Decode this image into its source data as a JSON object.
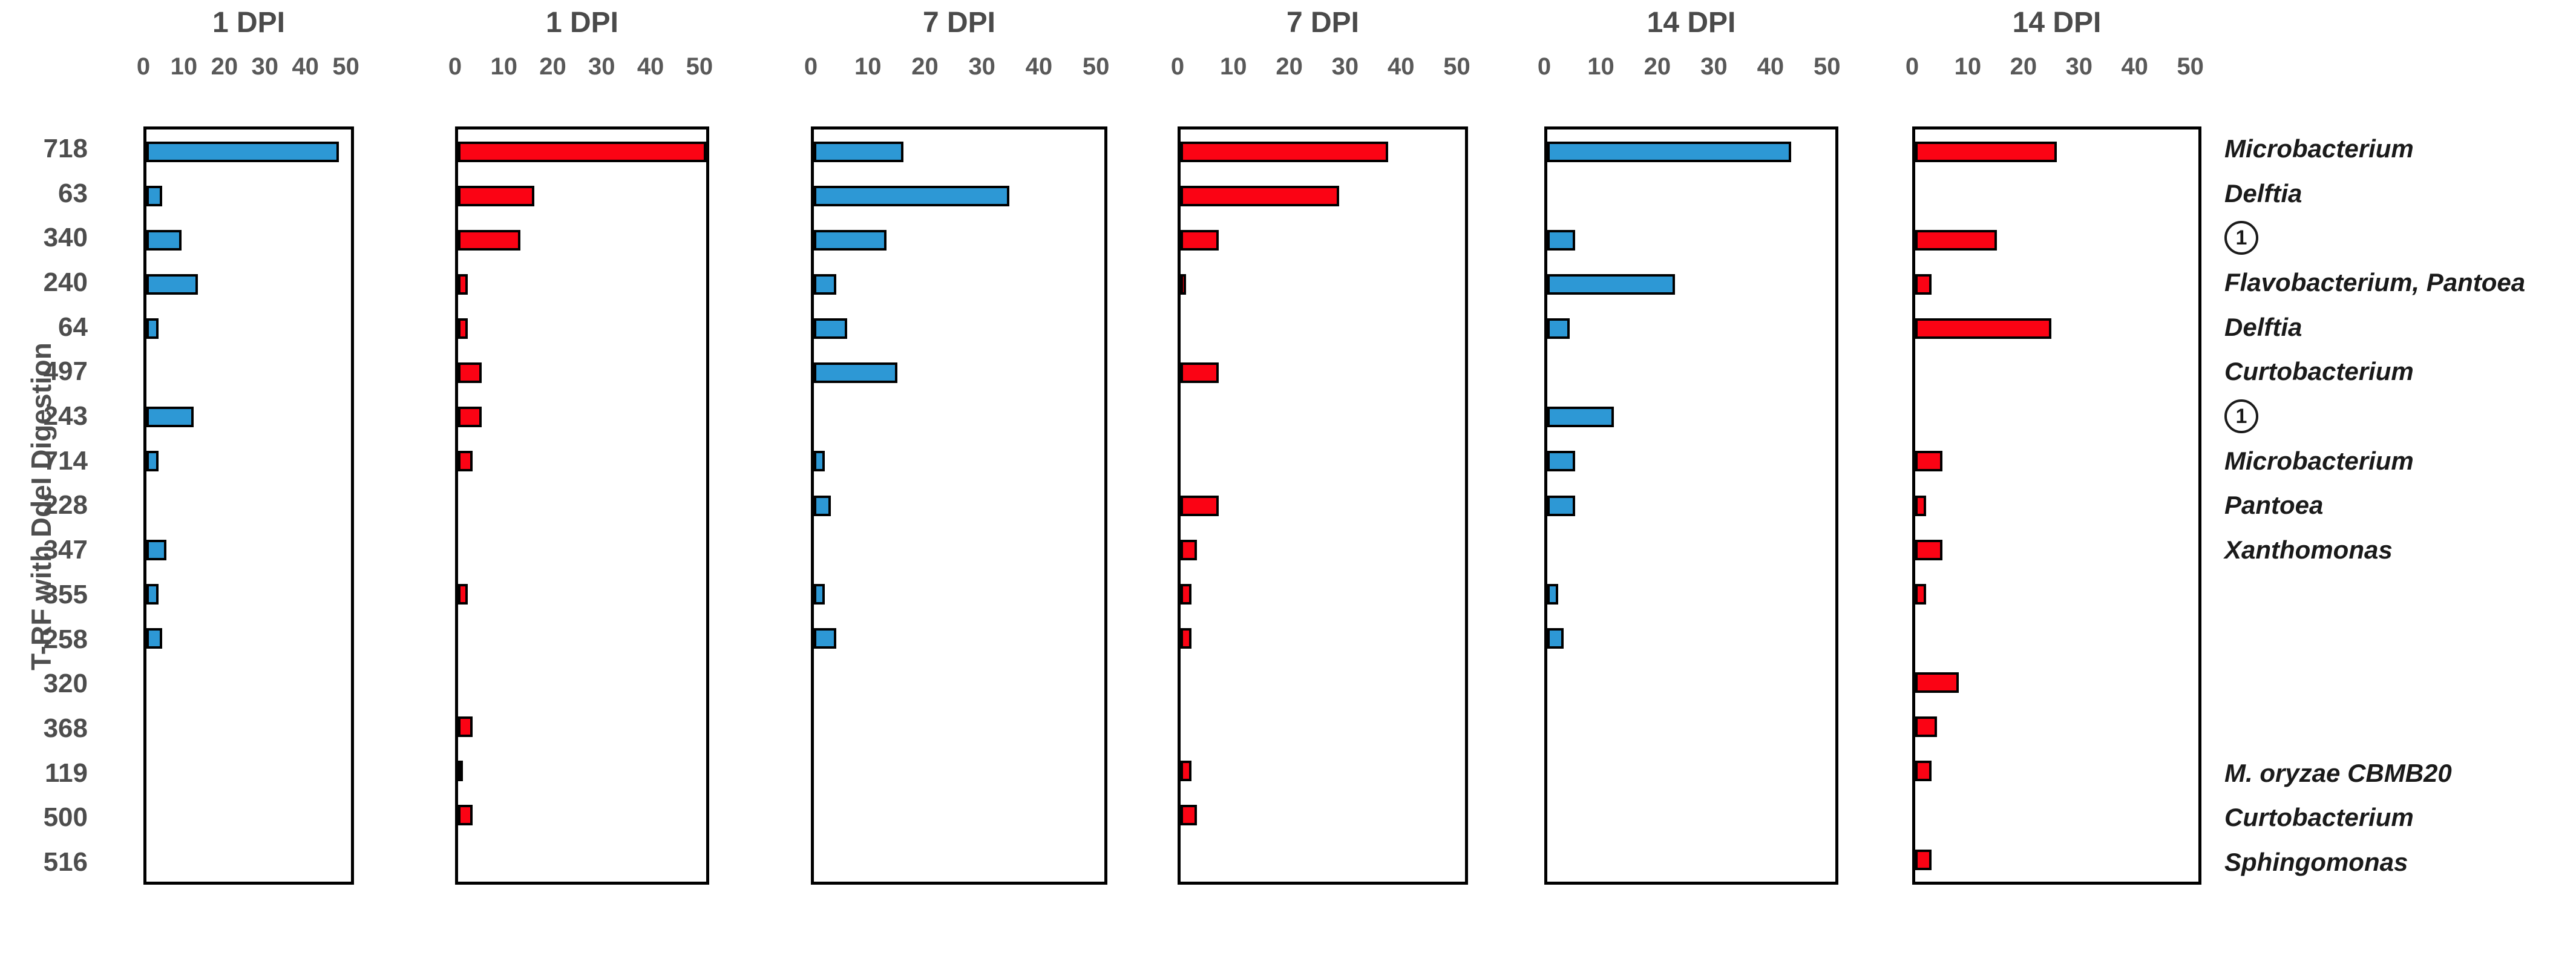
{
  "chart_data": {
    "type": "bar",
    "orientation": "horizontal",
    "title": "",
    "ylabel": "T-RF with DdeI Digestion",
    "xlabel": "",
    "xlim": [
      0,
      52
    ],
    "xticks": [
      0,
      10,
      20,
      30,
      40,
      50
    ],
    "grid": false,
    "categories": [
      "718",
      "63",
      "340",
      "240",
      "64",
      "497",
      "243",
      "714",
      "228",
      "347",
      "355",
      "258",
      "320",
      "368",
      "119",
      "500",
      "516"
    ],
    "panels": [
      {
        "title": "1 DPI",
        "series_color": "blue",
        "color_hex": "#2d98d5",
        "values": [
          49,
          4,
          9,
          13,
          3,
          0,
          12,
          3,
          0,
          5,
          3,
          4,
          0,
          0,
          0,
          0,
          0
        ]
      },
      {
        "title": "1 DPI",
        "series_color": "red",
        "color_hex": "#fb0314",
        "values": [
          52,
          16,
          13,
          2,
          2,
          5,
          5,
          3,
          0,
          0,
          2,
          0,
          0,
          3,
          1,
          3,
          0
        ]
      },
      {
        "title": "7 DPI",
        "series_color": "blue",
        "color_hex": "#2d98d5",
        "values": [
          16,
          35,
          13,
          4,
          6,
          15,
          0,
          2,
          3,
          0,
          2,
          4,
          0,
          0,
          0,
          0,
          0
        ]
      },
      {
        "title": "7 DPI",
        "series_color": "red",
        "color_hex": "#fb0314",
        "values": [
          38,
          29,
          7,
          1,
          0,
          7,
          0,
          0,
          7,
          3,
          2,
          2,
          0,
          0,
          2,
          3,
          0
        ]
      },
      {
        "title": "14 DPI",
        "series_color": "blue",
        "color_hex": "#2d98d5",
        "values": [
          44,
          0,
          5,
          23,
          4,
          0,
          12,
          5,
          5,
          0,
          2,
          3,
          0,
          0,
          0,
          0,
          0
        ]
      },
      {
        "title": "14 DPI",
        "series_color": "red",
        "color_hex": "#fb0314",
        "values": [
          26,
          0,
          15,
          3,
          25,
          0,
          0,
          5,
          2,
          5,
          2,
          0,
          8,
          4,
          3,
          0,
          3
        ]
      }
    ],
    "right_annotations": [
      {
        "text": "Microbacterium"
      },
      {
        "text": "Delftia"
      },
      {
        "text": "1",
        "circled": true
      },
      {
        "text": "Flavobacterium, Pantoea"
      },
      {
        "text": "Delftia"
      },
      {
        "text": "Curtobacterium"
      },
      {
        "text": "1",
        "circled": true
      },
      {
        "text": "Microbacterium"
      },
      {
        "text": "Pantoea"
      },
      {
        "text": "Xanthomonas"
      },
      null,
      null,
      null,
      null,
      {
        "text": "M. oryzae CBMB20"
      },
      {
        "text": "Curtobacterium"
      },
      {
        "text": "Sphingomonas"
      }
    ],
    "colors": {
      "blue": "#2d98d5",
      "red": "#fb0314",
      "box_border": "#000000",
      "axis_text": "#595959"
    }
  }
}
